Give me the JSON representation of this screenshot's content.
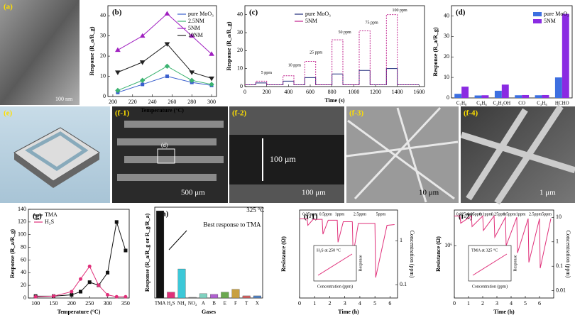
{
  "chart_data": [
    {
      "type": "line",
      "panel": "(b)",
      "xlabel": "Temperature (°C)",
      "ylabel": "Response (R_a/R_g)",
      "x": [
        205,
        230,
        255,
        280,
        300
      ],
      "xlim": [
        195,
        305
      ],
      "xticks": [
        200,
        220,
        240,
        260,
        280,
        300
      ],
      "ylim": [
        0,
        45
      ],
      "yticks": [
        0,
        10,
        20,
        30,
        40
      ],
      "legend": "upper right",
      "series": [
        {
          "name": "pure MoO₃",
          "color": "#3a5fcd",
          "marker": "square",
          "values": [
            2,
            6,
            10,
            7,
            5.5
          ]
        },
        {
          "name": "2.5NM",
          "color": "#3cb371",
          "marker": "diamond",
          "values": [
            3,
            8,
            15,
            8,
            6
          ]
        },
        {
          "name": "5NM",
          "color": "#a020c0",
          "marker": "triangle",
          "values": [
            23,
            30,
            41,
            30,
            21
          ]
        },
        {
          "name": "10NM",
          "color": "#222222",
          "marker": "triangle-down",
          "values": [
            12,
            17,
            26,
            12,
            9
          ]
        }
      ]
    },
    {
      "type": "line",
      "panel": "(c)",
      "xlabel": "Time (s)",
      "ylabel": "Response (R_a/R_g)",
      "x": [
        0,
        100,
        100,
        200,
        200,
        350,
        350,
        450,
        450,
        550,
        550,
        650,
        650,
        800,
        800,
        900,
        900,
        1050,
        1050,
        1150,
        1150,
        1300,
        1300,
        1400,
        1400,
        1600
      ],
      "xlim": [
        0,
        1650
      ],
      "xticks": [
        0,
        200,
        400,
        600,
        800,
        1000,
        1200,
        1400,
        1600
      ],
      "ylim": [
        0,
        45
      ],
      "yticks": [
        0,
        10,
        20,
        30,
        40
      ],
      "legend": "upper left",
      "annotations": [
        "5 ppm",
        "10 ppm",
        "25 ppm",
        "50 ppm",
        "75 ppm",
        "100 ppm"
      ],
      "series": [
        {
          "name": "pure MoO₃",
          "color": "#1f2a7a",
          "values": [
            1,
            1,
            2,
            2,
            1,
            1,
            3,
            3,
            1,
            1,
            5,
            5,
            1,
            1,
            7,
            7,
            1,
            1,
            9,
            9,
            1,
            1,
            10,
            10,
            1,
            1
          ]
        },
        {
          "name": "5NM",
          "color": "#c0208c",
          "dash": true,
          "values": [
            1,
            1,
            3,
            3,
            1,
            1,
            6,
            6,
            1,
            1,
            14,
            14,
            1,
            1,
            26,
            26,
            1,
            1,
            31,
            31,
            1,
            1,
            40,
            40,
            1,
            1
          ]
        }
      ]
    },
    {
      "type": "grouped-bar",
      "panel": "(d)",
      "ylabel": "Response (R_a/R_g)",
      "categories": [
        "C₇H₈",
        "C₆H₆",
        "C₂H₅OH",
        "CO",
        "C₃H₆",
        "HCHO"
      ],
      "ylim": [
        0,
        45
      ],
      "yticks": [
        0,
        10,
        20,
        30,
        40
      ],
      "legend": "upper right",
      "series": [
        {
          "name": "pure MoO₃",
          "color": "#3d6fe0",
          "values": [
            2,
            1.2,
            3.5,
            1.3,
            1.3,
            10
          ]
        },
        {
          "name": "5NM",
          "color": "#8a2be2",
          "values": [
            5.5,
            1.3,
            6.5,
            1.4,
            1.4,
            41
          ]
        }
      ]
    },
    {
      "type": "line",
      "panel": "(g)",
      "xlabel": "Temperature (°C)",
      "ylabel": "Response (R_a/R_g)",
      "x": [
        100,
        150,
        200,
        225,
        250,
        275,
        300,
        325,
        350
      ],
      "xlim": [
        80,
        360
      ],
      "xticks": [
        100,
        150,
        200,
        250,
        300,
        350
      ],
      "ylim": [
        0,
        140
      ],
      "yticks": [
        0,
        20,
        40,
        60,
        80,
        100,
        120,
        140
      ],
      "legend": "upper left",
      "series": [
        {
          "name": "TMA",
          "color": "#111111",
          "marker": "square",
          "values": [
            3,
            3,
            5,
            10,
            25,
            20,
            40,
            120,
            75
          ]
        },
        {
          "name": "H₂S",
          "color": "#e0307a",
          "marker": "circle",
          "values": [
            2,
            3,
            10,
            30,
            50,
            20,
            5,
            2,
            2
          ]
        }
      ]
    },
    {
      "type": "bar",
      "panel": "(h)",
      "xlabel": "Gases",
      "ylabel": "Response (R_a/R_g or R_g/R_a)",
      "categories": [
        "TMA",
        "H₂S",
        "NH₃",
        "NO₂",
        "A",
        "B",
        "E",
        "F",
        "T",
        "X"
      ],
      "values": [
        120,
        8,
        40,
        1,
        6,
        5,
        8,
        12,
        3,
        3
      ],
      "colors": [
        "#111111",
        "#e0307a",
        "#3cc8d8",
        "#888888",
        "#7fd1c0",
        "#b060d0",
        "#6aa84f",
        "#c8a040",
        "#d06060",
        "#5080c0"
      ],
      "ylim": [
        0,
        125
      ],
      "annotations": [
        "325 °C",
        "Best response to TMA"
      ]
    },
    {
      "type": "line",
      "panel": "(i-1)",
      "xlabel": "Time (h)",
      "ylabel": "Resistance (Ω)",
      "y2label": "Concentration (ppm)",
      "ylog": true,
      "y2log": true,
      "x": [
        0,
        0.5,
        0.55,
        0.9,
        1.5,
        1.55,
        1.9,
        2.5,
        2.55,
        2.9,
        3.5,
        3.55,
        3.9,
        5,
        5.05,
        5.8,
        6.3
      ],
      "xlim": [
        0,
        6.5
      ],
      "xticks": [
        0,
        1,
        2,
        3,
        4,
        5,
        6
      ],
      "ylim": [
        10000,
        10000000
      ],
      "y2lim": [
        0.05,
        5
      ],
      "y2ticks": [
        0.1,
        1
      ],
      "annotations": [
        "0.25ppm",
        "0.5ppm",
        "1ppm",
        "2.5ppm",
        "5ppm"
      ],
      "inset": {
        "title": "H₂S at 250 °C",
        "xlabel": "Concentration (ppm)",
        "ylabel": "Response"
      },
      "series": [
        {
          "name": "Resistance",
          "color": "#e0307a",
          "values": [
            5000000,
            5000000,
            3000000,
            4800000,
            4800000,
            1500000,
            4500000,
            4500000,
            800000,
            4000000,
            4000000,
            300000,
            3500000,
            3500000,
            50000,
            3000000,
            3200000
          ]
        }
      ]
    },
    {
      "type": "line",
      "panel": "(i-2)",
      "xlabel": "Time (h)",
      "ylabel": "Resistance (Ω)",
      "y2label": "Concentration (ppm)",
      "ylog": true,
      "y2log": true,
      "x": [
        0,
        0.4,
        0.45,
        1.2,
        1.25,
        2,
        2.05,
        2.8,
        2.85,
        3.6,
        3.65,
        4.4,
        4.45,
        5.2,
        5.25,
        6,
        6.05,
        6.8
      ],
      "xlim": [
        0,
        7
      ],
      "xticks": [
        0,
        1,
        2,
        3,
        4,
        5,
        6
      ],
      "ylim": [
        200000,
        3000000
      ],
      "yticks": [
        {
          "value": 1000000,
          "label": "10⁶"
        }
      ],
      "y2lim": [
        0.005,
        20
      ],
      "y2ticks": [
        0.01,
        0.1,
        1,
        10
      ],
      "annotations": [
        "0.025ppm",
        "0.05ppm",
        "0.1ppm",
        "0.25ppm",
        "0.5ppm",
        "1ppm",
        "2.5ppm",
        "5ppm"
      ],
      "inset": {
        "title": "TMA at 325 °C",
        "xlabel": "Concentration (ppm)",
        "ylabel": "Response"
      },
      "series": [
        {
          "name": "Resistance",
          "color": "#e0307a",
          "values": [
            2500000,
            2500000,
            2000000,
            2500000,
            1800000,
            2500000,
            1600000,
            2500000,
            1300000,
            2400000,
            1000000,
            2400000,
            800000,
            2300000,
            600000,
            2300000,
            500000,
            2300000
          ]
        }
      ]
    }
  ],
  "images": [
    {
      "label": "(a)",
      "scale": "100 nm"
    },
    {
      "label": "(e)"
    },
    {
      "label": "(f-1)",
      "marker": "(d)",
      "scale": "500 μm"
    },
    {
      "label": "(f-2)",
      "marker": "100 μm",
      "scale": "100 μm"
    },
    {
      "label": "(f-3)",
      "scale": "10 μm"
    },
    {
      "label": "(f-4)",
      "scale": "1 μm"
    }
  ]
}
